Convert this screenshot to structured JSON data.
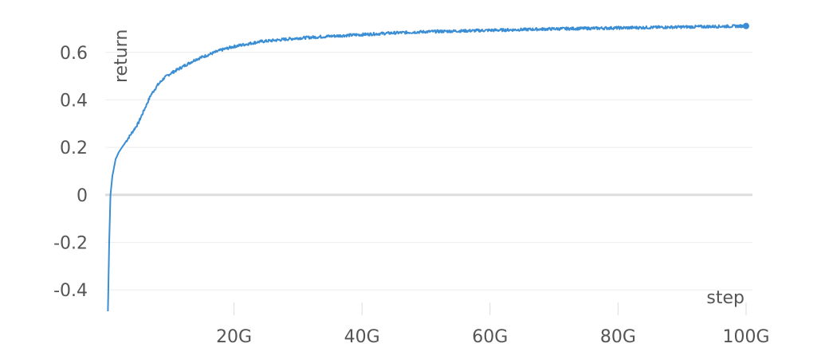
{
  "chart_data": {
    "type": "line",
    "title": "",
    "xlabel": "step",
    "ylabel": "return",
    "xlim": [
      0,
      100
    ],
    "ylim": [
      -0.48,
      0.72
    ],
    "x_unit": "G",
    "grid": true,
    "legend": "none",
    "line_color": "#3b8ed4",
    "y_ticks": [
      {
        "value": 0.6,
        "label": "0.6"
      },
      {
        "value": 0.4,
        "label": "0.4"
      },
      {
        "value": 0.2,
        "label": "0.2"
      },
      {
        "value": 0,
        "label": "0"
      },
      {
        "value": -0.2,
        "label": "-0.2"
      },
      {
        "value": -0.4,
        "label": "-0.4"
      }
    ],
    "x_ticks": [
      {
        "value": 20,
        "label": "20G"
      },
      {
        "value": 40,
        "label": "40G"
      },
      {
        "value": 60,
        "label": "60G"
      },
      {
        "value": 80,
        "label": "80G"
      },
      {
        "value": 100,
        "label": "100G"
      }
    ],
    "series": [
      {
        "x": [
          0.3,
          0.5,
          0.7,
          1,
          1.5,
          2,
          3,
          4,
          5,
          6,
          7,
          8,
          9,
          10,
          12,
          14,
          16,
          18,
          20,
          22,
          24,
          26,
          28,
          30,
          35,
          40,
          45,
          50,
          55,
          60,
          65,
          70,
          75,
          80,
          85,
          90,
          95,
          100
        ],
        "y": [
          -0.49,
          -0.2,
          0,
          0.08,
          0.15,
          0.18,
          0.22,
          0.26,
          0.3,
          0.36,
          0.42,
          0.46,
          0.49,
          0.51,
          0.54,
          0.57,
          0.59,
          0.61,
          0.625,
          0.635,
          0.645,
          0.65,
          0.655,
          0.66,
          0.668,
          0.675,
          0.682,
          0.687,
          0.69,
          0.693,
          0.696,
          0.699,
          0.701,
          0.703,
          0.705,
          0.707,
          0.709,
          0.711
        ]
      }
    ]
  }
}
